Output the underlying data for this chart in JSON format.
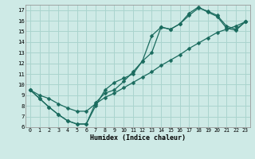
{
  "xlabel": "Humidex (Indice chaleur)",
  "bg_color": "#ceeae6",
  "grid_color": "#aad4ce",
  "line_color": "#1a6b5e",
  "xlim": [
    -0.5,
    23.5
  ],
  "ylim": [
    6,
    17.5
  ],
  "xticks": [
    0,
    1,
    2,
    3,
    4,
    5,
    6,
    7,
    8,
    9,
    10,
    11,
    12,
    13,
    14,
    15,
    16,
    17,
    18,
    19,
    20,
    21,
    22,
    23
  ],
  "yticks": [
    6,
    7,
    8,
    9,
    10,
    11,
    12,
    13,
    14,
    15,
    16,
    17
  ],
  "line1_x": [
    0,
    1,
    2,
    3,
    4,
    5,
    6,
    7,
    8,
    9,
    10,
    11,
    12,
    13,
    14,
    15,
    16,
    17,
    18,
    19,
    20,
    21,
    22,
    23
  ],
  "line1_y": [
    9.5,
    8.7,
    7.9,
    7.2,
    6.6,
    6.3,
    6.3,
    8.3,
    9.2,
    9.5,
    10.3,
    11.2,
    12.2,
    14.6,
    15.4,
    15.2,
    15.7,
    16.7,
    17.3,
    16.8,
    16.4,
    15.3,
    15.1,
    15.9
  ],
  "line2_x": [
    0,
    1,
    2,
    3,
    4,
    5,
    6,
    7,
    8,
    9,
    10,
    11,
    12,
    13,
    14,
    15,
    16,
    17,
    18,
    19,
    20,
    21,
    22,
    23
  ],
  "line2_y": [
    9.5,
    8.7,
    7.9,
    7.2,
    6.6,
    6.3,
    6.3,
    8.0,
    9.5,
    10.2,
    10.6,
    11.0,
    12.2,
    13.0,
    15.4,
    15.2,
    15.7,
    16.5,
    17.2,
    16.9,
    16.5,
    15.5,
    15.2,
    15.9
  ],
  "line3_x": [
    0,
    1,
    2,
    3,
    4,
    5,
    6,
    7,
    8,
    9,
    10,
    11,
    12,
    13,
    14,
    15,
    16,
    17,
    18,
    19,
    20,
    21,
    22,
    23
  ],
  "line3_y": [
    9.5,
    9.0,
    8.7,
    8.2,
    7.8,
    7.5,
    7.5,
    8.2,
    8.8,
    9.2,
    9.7,
    10.2,
    10.7,
    11.2,
    11.8,
    12.3,
    12.8,
    13.4,
    13.9,
    14.4,
    14.9,
    15.2,
    15.5,
    15.9
  ]
}
